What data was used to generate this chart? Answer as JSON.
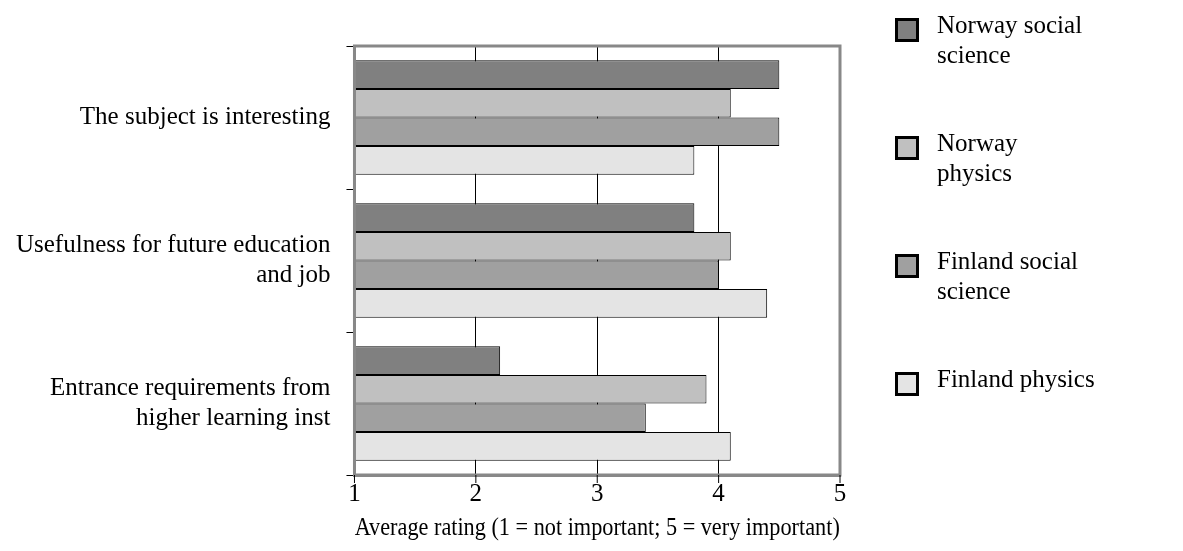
{
  "chart_data": {
    "type": "bar",
    "orientation": "horizontal",
    "xlabel": "Average rating (1 = not important; 5 = very important)",
    "categories": [
      "The subject is interesting",
      "Usefulness for future education and job",
      "Entrance requirements from higher learning inst"
    ],
    "series": [
      {
        "name": "Norway social science",
        "color": "#808080",
        "values": [
          4.5,
          3.8,
          2.2
        ]
      },
      {
        "name": "Norway physics",
        "color": "#c0c0c0",
        "values": [
          4.1,
          4.1,
          3.9
        ]
      },
      {
        "name": "Finland social science",
        "color": "#a0a0a0",
        "values": [
          4.5,
          4.0,
          3.4
        ]
      },
      {
        "name": "Finland physics",
        "color": "#e4e4e4",
        "values": [
          3.8,
          4.4,
          4.1
        ]
      }
    ],
    "xlim": [
      1,
      5
    ],
    "xticks": [
      1,
      2,
      3,
      4,
      5
    ],
    "grid": "x",
    "legend": "right"
  }
}
